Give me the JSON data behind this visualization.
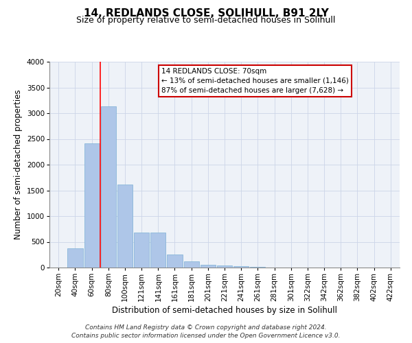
{
  "title": "14, REDLANDS CLOSE, SOLIHULL, B91 2LY",
  "subtitle": "Size of property relative to semi-detached houses in Solihull",
  "xlabel": "Distribution of semi-detached houses by size in Solihull",
  "ylabel": "Number of semi-detached properties",
  "footer1": "Contains HM Land Registry data © Crown copyright and database right 2024.",
  "footer2": "Contains public sector information licensed under the Open Government Licence v3.0.",
  "annotation_title": "14 REDLANDS CLOSE: 70sqm",
  "annotation_line2": "← 13% of semi-detached houses are smaller (1,146)",
  "annotation_line3": "87% of semi-detached houses are larger (7,628) →",
  "categories": [
    "20sqm",
    "40sqm",
    "60sqm",
    "80sqm",
    "100sqm",
    "121sqm",
    "141sqm",
    "161sqm",
    "181sqm",
    "201sqm",
    "221sqm",
    "241sqm",
    "261sqm",
    "281sqm",
    "301sqm",
    "322sqm",
    "342sqm",
    "362sqm",
    "382sqm",
    "402sqm",
    "422sqm"
  ],
  "values": [
    0,
    380,
    2420,
    3130,
    1610,
    680,
    680,
    260,
    120,
    55,
    40,
    25,
    10,
    5,
    3,
    2,
    1,
    1,
    0,
    0,
    0
  ],
  "bar_color": "#aec6e8",
  "bar_edge_color": "#7aafd4",
  "redline_index": 2.5,
  "ylim": [
    0,
    4000
  ],
  "yticks": [
    0,
    500,
    1000,
    1500,
    2000,
    2500,
    3000,
    3500,
    4000
  ],
  "grid_color": "#ccd5e8",
  "background_color": "#eef2f8",
  "annotation_box_color": "#ffffff",
  "annotation_box_edge": "#cc0000",
  "title_fontsize": 11,
  "subtitle_fontsize": 9,
  "axis_label_fontsize": 8.5,
  "tick_fontsize": 7.5,
  "annotation_fontsize": 7.5,
  "footer_fontsize": 6.5
}
